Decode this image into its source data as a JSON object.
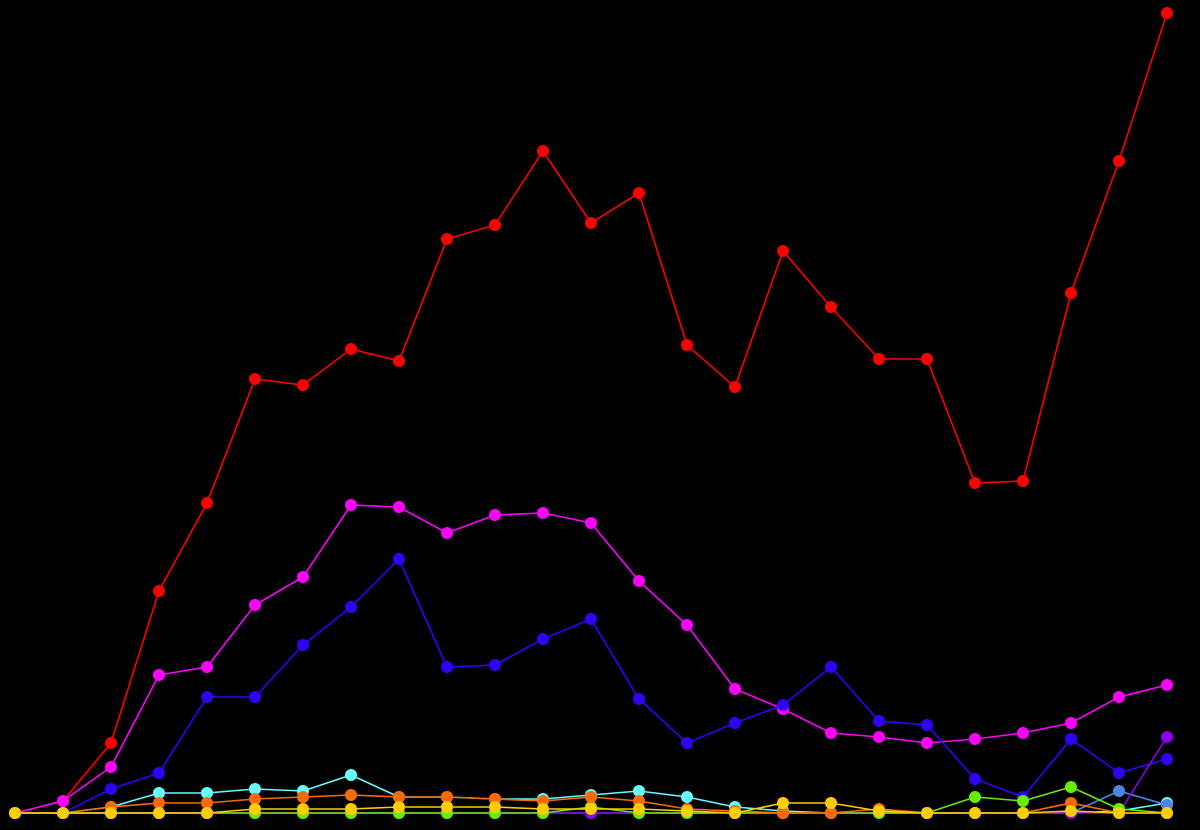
{
  "chart_data": {
    "type": "line",
    "ylim": [
      0,
      800
    ],
    "background": "#000000",
    "marker_radius": 6,
    "series": [
      {
        "color": "#ff0000",
        "values": [
          0,
          12,
          70,
          222,
          310,
          434,
          428,
          464,
          452,
          574,
          588,
          662,
          590,
          620,
          468,
          426,
          562,
          506,
          454,
          454,
          330,
          332,
          520,
          652,
          800
        ]
      },
      {
        "color": "#ff00ff",
        "values": [
          0,
          12,
          46,
          138,
          146,
          208,
          236,
          308,
          306,
          280,
          298,
          300,
          290,
          232,
          188,
          124,
          104,
          80,
          76,
          70,
          74,
          80,
          90,
          116,
          128
        ]
      },
      {
        "color": "#3300ff",
        "values": [
          0,
          0,
          24,
          40,
          116,
          116,
          168,
          206,
          254,
          146,
          148,
          174,
          194,
          114,
          70,
          90,
          108,
          146,
          92,
          88,
          34,
          16,
          74,
          40,
          54
        ]
      },
      {
        "color": "#66ffff",
        "values": [
          0,
          0,
          6,
          20,
          20,
          24,
          22,
          38,
          16,
          16,
          14,
          14,
          18,
          22,
          16,
          6,
          2,
          0,
          0,
          0,
          0,
          0,
          0,
          2,
          10
        ]
      },
      {
        "color": "#4a86e8",
        "values": [
          0,
          0,
          0,
          0,
          0,
          0,
          0,
          0,
          0,
          0,
          0,
          0,
          0,
          0,
          0,
          0,
          0,
          0,
          0,
          0,
          0,
          0,
          0,
          22,
          8
        ]
      },
      {
        "color": "#8800ee",
        "values": [
          0,
          0,
          0,
          0,
          0,
          0,
          0,
          0,
          0,
          0,
          0,
          0,
          0,
          0,
          0,
          0,
          0,
          0,
          0,
          0,
          0,
          0,
          0,
          0,
          76
        ]
      },
      {
        "color": "#66ee00",
        "values": [
          0,
          0,
          0,
          0,
          0,
          0,
          0,
          0,
          0,
          0,
          0,
          0,
          6,
          0,
          0,
          0,
          0,
          0,
          0,
          0,
          16,
          12,
          26,
          4,
          0
        ]
      },
      {
        "color": "#ff6a00",
        "values": [
          0,
          0,
          6,
          10,
          10,
          14,
          16,
          18,
          16,
          16,
          14,
          12,
          16,
          12,
          4,
          2,
          0,
          0,
          4,
          0,
          0,
          0,
          10,
          0,
          0
        ]
      },
      {
        "color": "#ffcc00",
        "values": [
          0,
          0,
          0,
          0,
          0,
          4,
          4,
          4,
          6,
          6,
          6,
          4,
          4,
          4,
          2,
          0,
          10,
          10,
          2,
          0,
          0,
          0,
          2,
          0,
          0
        ]
      }
    ]
  }
}
